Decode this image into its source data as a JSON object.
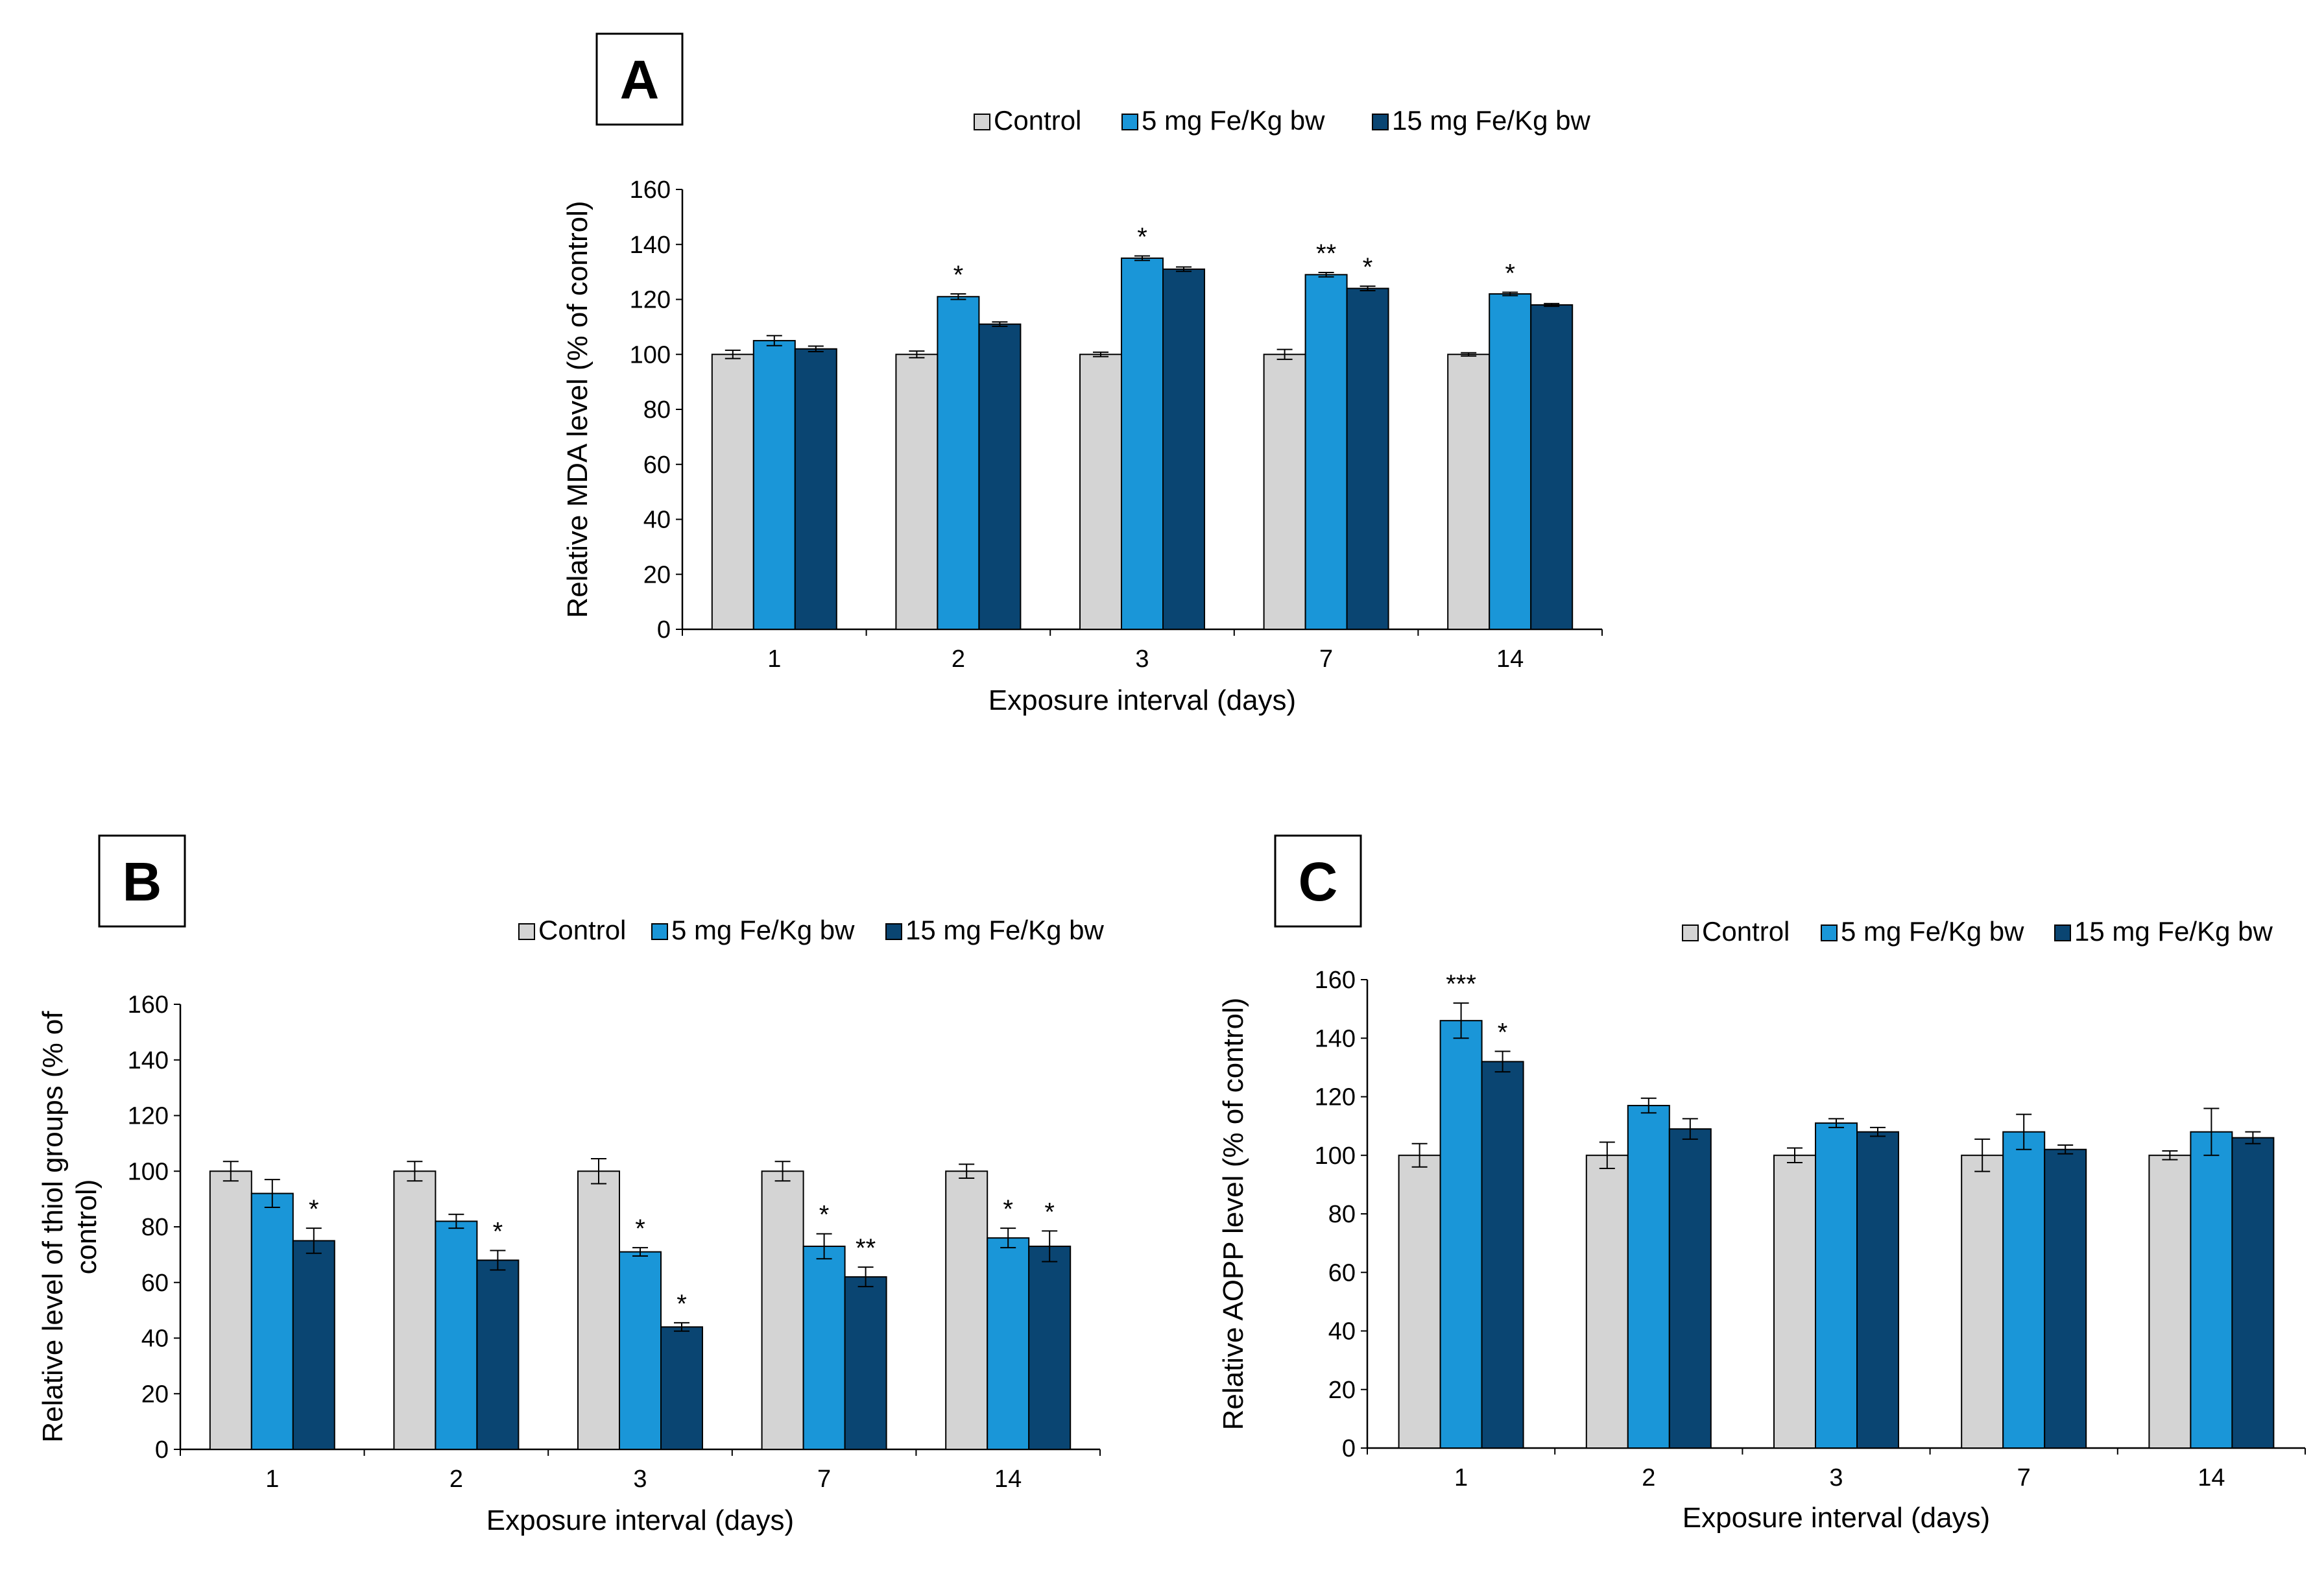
{
  "colors": {
    "control": "#d4d4d4",
    "low_dose": "#1a96d8",
    "high_dose": "#0a4572",
    "bar_outline": "#000000",
    "axis": "#000000"
  },
  "chart_data": [
    {
      "type": "bar",
      "panel": "A",
      "categories": [
        "1",
        "2",
        "3",
        "7",
        "14"
      ],
      "xlabel": "Exposure interval (days)",
      "ylabel": "Relative MDA level (% of control)",
      "ylim": [
        0,
        160
      ],
      "yticks": [
        "0",
        "20",
        "40",
        "60",
        "80",
        "100",
        "120",
        "140",
        "160"
      ],
      "legend_position": "top",
      "series": [
        {
          "name": "Control",
          "values": [
            100,
            100,
            100,
            100,
            100
          ],
          "errors": [
            1.5,
            1.2,
            0.8,
            1.8,
            0.6
          ],
          "labels": [
            "",
            "",
            "",
            "",
            ""
          ]
        },
        {
          "name": "5 mg Fe/Kg bw",
          "values": [
            105,
            121,
            135,
            129,
            122
          ],
          "errors": [
            1.8,
            1.0,
            0.8,
            0.8,
            0.6
          ],
          "labels": [
            "",
            "*",
            "*",
            "**",
            "*"
          ]
        },
        {
          "name": "15 mg Fe/Kg bw",
          "values": [
            102,
            111,
            131,
            124,
            118
          ],
          "errors": [
            1.0,
            0.8,
            0.8,
            0.8,
            0.5
          ],
          "labels": [
            "",
            "",
            "",
            "*",
            ""
          ]
        }
      ]
    },
    {
      "type": "bar",
      "panel": "B",
      "categories": [
        "1",
        "2",
        "3",
        "7",
        "14"
      ],
      "xlabel": "Exposure interval (days)",
      "ylabel": "Relative level of thiol groups (% of control)",
      "ylabel_lines": [
        "Relative level of thiol groups (% of",
        "control)"
      ],
      "ylim": [
        0,
        160
      ],
      "yticks": [
        "0",
        "20",
        "40",
        "60",
        "80",
        "100",
        "120",
        "140",
        "160"
      ],
      "legend_position": "top",
      "series": [
        {
          "name": "Control",
          "values": [
            100,
            100,
            100,
            100,
            100
          ],
          "errors": [
            3.5,
            3.5,
            4.5,
            3.5,
            2.5
          ],
          "labels": [
            "",
            "",
            "",
            "",
            ""
          ]
        },
        {
          "name": "5 mg Fe/Kg bw",
          "values": [
            92,
            82,
            71,
            73,
            76
          ],
          "errors": [
            5.0,
            2.5,
            1.5,
            4.5,
            3.5
          ],
          "labels": [
            "",
            "",
            "*",
            "*",
            "*"
          ]
        },
        {
          "name": "15 mg Fe/Kg bw",
          "values": [
            75,
            68,
            44,
            62,
            73
          ],
          "errors": [
            4.5,
            3.5,
            1.5,
            3.5,
            5.5
          ],
          "labels": [
            "*",
            "*",
            "*",
            "**",
            "*"
          ]
        }
      ]
    },
    {
      "type": "bar",
      "panel": "C",
      "categories": [
        "1",
        "2",
        "3",
        "7",
        "14"
      ],
      "xlabel": "Exposure interval (days)",
      "ylabel": "Relative AOPP level (% of control)",
      "ylim": [
        0,
        160
      ],
      "yticks": [
        "0",
        "20",
        "40",
        "60",
        "80",
        "100",
        "120",
        "140",
        "160"
      ],
      "legend_position": "top",
      "series": [
        {
          "name": "Control",
          "values": [
            100,
            100,
            100,
            100,
            100
          ],
          "errors": [
            4.0,
            4.5,
            2.5,
            5.5,
            1.5
          ],
          "labels": [
            "",
            "",
            "",
            "",
            ""
          ]
        },
        {
          "name": "5 mg Fe/Kg bw",
          "values": [
            146,
            117,
            111,
            108,
            108
          ],
          "errors": [
            6.0,
            2.5,
            1.5,
            6.0,
            8.0
          ],
          "labels": [
            "***",
            "",
            "",
            "",
            ""
          ]
        },
        {
          "name": "15 mg Fe/Kg bw",
          "values": [
            132,
            109,
            108,
            102,
            106
          ],
          "errors": [
            3.5,
            3.5,
            1.5,
            1.5,
            2.0
          ],
          "labels": [
            "*",
            "",
            "",
            "",
            ""
          ]
        }
      ]
    }
  ]
}
